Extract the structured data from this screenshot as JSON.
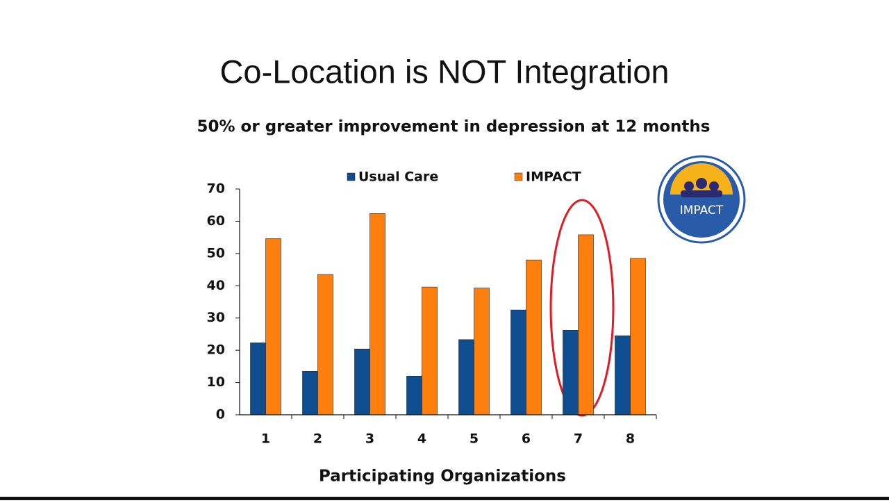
{
  "chart_data": {
    "type": "bar",
    "title": "Co-Location is NOT Integration",
    "subtitle": "50% or greater improvement in depression at 12 months",
    "x_label": "Participating Organizations",
    "categories": [
      "1",
      "2",
      "3",
      "4",
      "5",
      "6",
      "7",
      "8"
    ],
    "series": [
      {
        "name": "Usual Care",
        "color": "#0e4d8f",
        "values": [
          22.3,
          13.5,
          20.4,
          12,
          23.3,
          32.5,
          26.2,
          24.5
        ]
      },
      {
        "name": "IMPACT",
        "color": "#ff7f0e",
        "values": [
          54.6,
          43.5,
          62.4,
          39.6,
          39.3,
          48,
          55.8,
          48.5
        ]
      }
    ],
    "ylim": [
      0,
      70
    ],
    "yticks": [
      0,
      10,
      20,
      30,
      40,
      50,
      60,
      70
    ],
    "grid": false,
    "legend": "top"
  },
  "logo": {
    "label": "IMPACT"
  }
}
